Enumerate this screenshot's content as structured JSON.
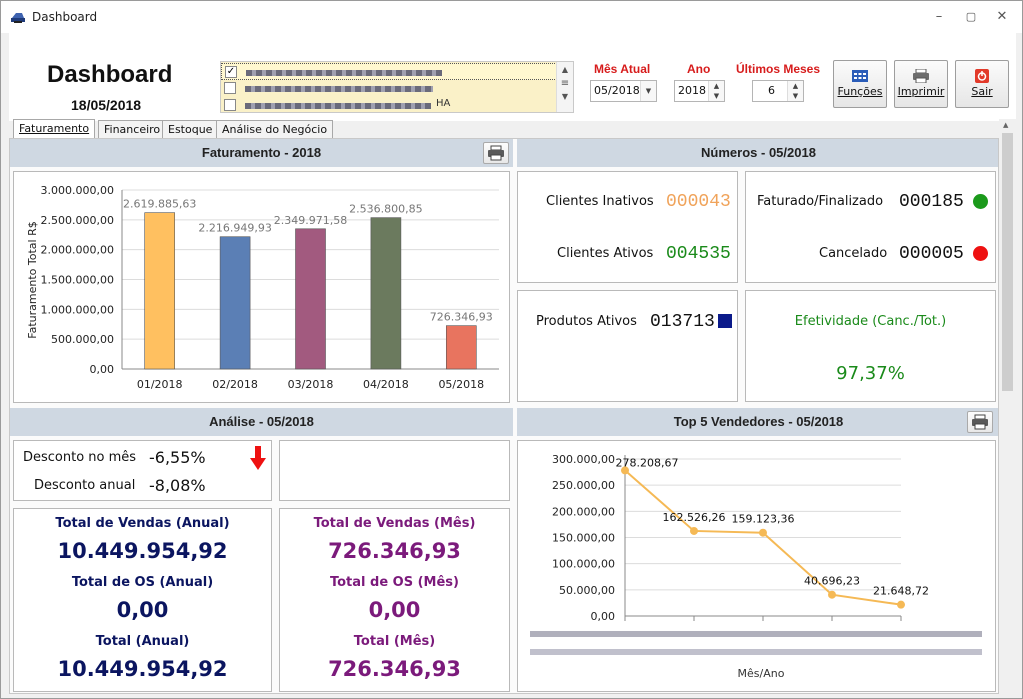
{
  "window": {
    "title": "Dashboard",
    "minimize": "–",
    "maximize": "▢",
    "close": "✕"
  },
  "header": {
    "title": "Dashboard",
    "date": "18/05/2018",
    "companies": [
      {
        "checked": "✓",
        "tail": ""
      },
      {
        "checked": "",
        "tail": ""
      },
      {
        "checked": "",
        "tail": "HA"
      }
    ],
    "mes_atual_label": "Mês Atual",
    "mes_atual_value": "05/2018",
    "ano_label": "Ano",
    "ano_value": "2018",
    "ultimos_meses_label": "Últimos Meses",
    "ultimos_meses_value": "6",
    "funcoes_label": "Funções",
    "imprimir_label": "Imprimir",
    "sair_label": "Sair"
  },
  "tabs": [
    {
      "label": "Faturamento"
    },
    {
      "label": "Financeiro"
    },
    {
      "label": "Estoque"
    },
    {
      "label": "Análise do Negócio"
    }
  ],
  "faturamento": {
    "title": "Faturamento - 2018"
  },
  "numeros": {
    "title": "Números - 05/2018",
    "clientes_inativos_label": "Clientes Inativos",
    "clientes_inativos_value": "000043",
    "clientes_ativos_label": "Clientes Ativos",
    "clientes_ativos_value": "004535",
    "faturado_label": "Faturado/Finalizado",
    "faturado_value": "000185",
    "cancelado_label": "Cancelado",
    "cancelado_value": "000005",
    "produtos_label": "Produtos Ativos",
    "produtos_value": "013713",
    "efetividade_label": "Efetividade (Canc./Tot.)",
    "efetividade_value": "97,37%"
  },
  "analise": {
    "title": "Análise - 05/2018",
    "desconto_mes_label": "Desconto no mês",
    "desconto_mes_value": "-6,55%",
    "desconto_anual_label": "Desconto anual",
    "desconto_anual_value": "-8,08%",
    "anual": {
      "vendas_label": "Total de Vendas (Anual)",
      "vendas_value": "10.449.954,92",
      "os_label": "Total de OS (Anual)",
      "os_value": "0,00",
      "total_label": "Total (Anual)",
      "total_value": "10.449.954,92"
    },
    "mes": {
      "vendas_label": "Total de Vendas (Mês)",
      "vendas_value": "726.346,93",
      "os_label": "Total de OS (Mês)",
      "os_value": "0,00",
      "total_label": "Total (Mês)",
      "total_value": "726.346,93"
    }
  },
  "top5": {
    "title": "Top 5 Vendedores - 05/2018"
  },
  "colors": {
    "header_red": "#d71c1c",
    "section_bg": "#cfd8e2",
    "orange_value": "#f0a35a",
    "green_value": "#1a8a1a",
    "navy": "#0b1560",
    "purple": "#7b1a7b",
    "dot_green": "#1b9a1b",
    "dot_red": "#ee1111",
    "square_navy": "#0b1a8a"
  },
  "chart_data": [
    {
      "type": "bar",
      "categories": [
        "01/2018",
        "02/2018",
        "03/2018",
        "04/2018",
        "05/2018"
      ],
      "values": [
        2619885.63,
        2216949.93,
        2349971.58,
        2536800.85,
        726346.93
      ],
      "value_labels": [
        "2.619.885,63",
        "2.216.949,93",
        "2.349.971,58",
        "2.536.800,85",
        "726.346,93"
      ],
      "colors": [
        "#ffc060",
        "#5b7fb5",
        "#a25a7f",
        "#6b7a5e",
        "#e8745f"
      ],
      "ylabel": "Faturamento Total R$",
      "ylim": [
        0,
        3000000
      ],
      "yticks": [
        0,
        500000,
        1000000,
        1500000,
        2000000,
        2500000,
        3000000
      ],
      "ytick_labels": [
        "0,00",
        "500.000,00",
        "1.000.000,00",
        "1.500.000,00",
        "2.000.000,00",
        "2.500.000,00",
        "3.000.000,00"
      ],
      "grid": true
    },
    {
      "type": "line",
      "values": [
        278208.67,
        162526.26,
        159123.36,
        40696.23,
        21648.72
      ],
      "value_labels": [
        "278.208,67",
        "162.526,26",
        "159.123,36",
        "40.696,23",
        "21.648,72"
      ],
      "color": "#f5b955",
      "xlabel": "Mês/Ano",
      "ylim": [
        0,
        300000
      ],
      "yticks": [
        0,
        50000,
        100000,
        150000,
        200000,
        250000,
        300000
      ],
      "ytick_labels": [
        "0,00",
        "50.000,00",
        "100.000,00",
        "150.000,00",
        "200.000,00",
        "250.000,00",
        "300.000,00"
      ],
      "grid": true
    }
  ]
}
